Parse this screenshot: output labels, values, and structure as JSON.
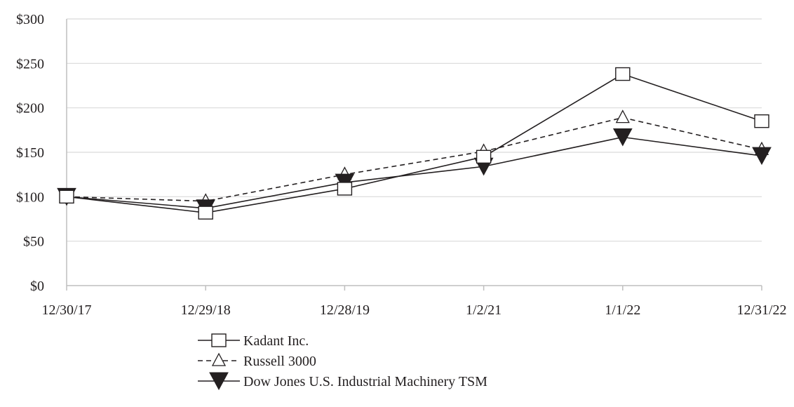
{
  "chart_data": {
    "type": "line",
    "title": "",
    "xlabel": "",
    "ylabel": "",
    "categories": [
      "12/30/17",
      "12/29/18",
      "12/28/19",
      "1/2/21",
      "1/1/22",
      "12/31/22"
    ],
    "y_ticks": [
      "$0",
      "$50",
      "$100",
      "$150",
      "$200",
      "$250",
      "$300"
    ],
    "ylim": [
      0,
      300
    ],
    "y_tick_step": 50,
    "grid": "horizontal",
    "legend_position": "bottom",
    "series": [
      {
        "name": "Kadant Inc.",
        "values": [
          100,
          82,
          109,
          145,
          238,
          185
        ],
        "marker": "open-square",
        "line_style": "solid"
      },
      {
        "name": "Russell 3000",
        "values": [
          100,
          95,
          125,
          151,
          189,
          153
        ],
        "marker": "open-triangle",
        "line_style": "dashed"
      },
      {
        "name": "Dow Jones U.S. Industrial Machinery TSM",
        "values": [
          100,
          87,
          116,
          134,
          167,
          146
        ],
        "marker": "filled-down-triangle",
        "line_style": "solid"
      }
    ],
    "colors": {
      "line": "#231f20",
      "grid": "#d9d9d9",
      "axis": "#bfbfbf"
    }
  }
}
